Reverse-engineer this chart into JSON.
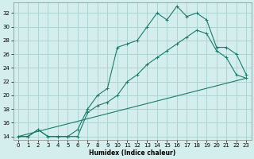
{
  "xlabel": "Humidex (Indice chaleur)",
  "bg_color": "#d4eeee",
  "grid_color": "#aed4d4",
  "line_color": "#1a7a6a",
  "xlim": [
    -0.5,
    23.5
  ],
  "ylim": [
    13.5,
    33.5
  ],
  "xticks": [
    0,
    1,
    2,
    3,
    4,
    5,
    6,
    7,
    8,
    9,
    10,
    11,
    12,
    13,
    14,
    15,
    16,
    17,
    18,
    19,
    20,
    21,
    22,
    23
  ],
  "yticks": [
    14,
    16,
    18,
    20,
    22,
    24,
    26,
    28,
    30,
    32
  ],
  "line1_x": [
    0,
    1,
    2,
    3,
    4,
    5,
    6,
    7,
    8,
    9,
    10,
    11,
    12,
    13,
    14,
    15,
    16,
    17,
    18,
    19,
    20,
    21,
    22,
    23
  ],
  "line1_y": [
    14,
    14,
    15,
    14,
    14,
    14,
    15,
    18,
    20,
    21,
    27,
    27.5,
    28,
    30,
    32,
    31,
    33,
    31.5,
    32,
    31,
    27,
    27,
    26,
    23
  ],
  "line2_x": [
    0,
    1,
    2,
    3,
    4,
    5,
    6,
    7,
    8,
    9,
    10,
    11,
    12,
    13,
    14,
    15,
    16,
    17,
    18,
    19,
    20,
    21,
    22,
    23
  ],
  "line2_y": [
    14,
    14,
    15,
    14,
    14,
    14,
    14,
    17.5,
    18.5,
    19,
    20,
    22,
    23,
    24.5,
    25.5,
    26.5,
    27.5,
    28.5,
    29.5,
    29,
    26.5,
    25.5,
    23,
    22.5
  ],
  "line3_x": [
    0,
    23
  ],
  "line3_y": [
    14,
    22.5
  ]
}
